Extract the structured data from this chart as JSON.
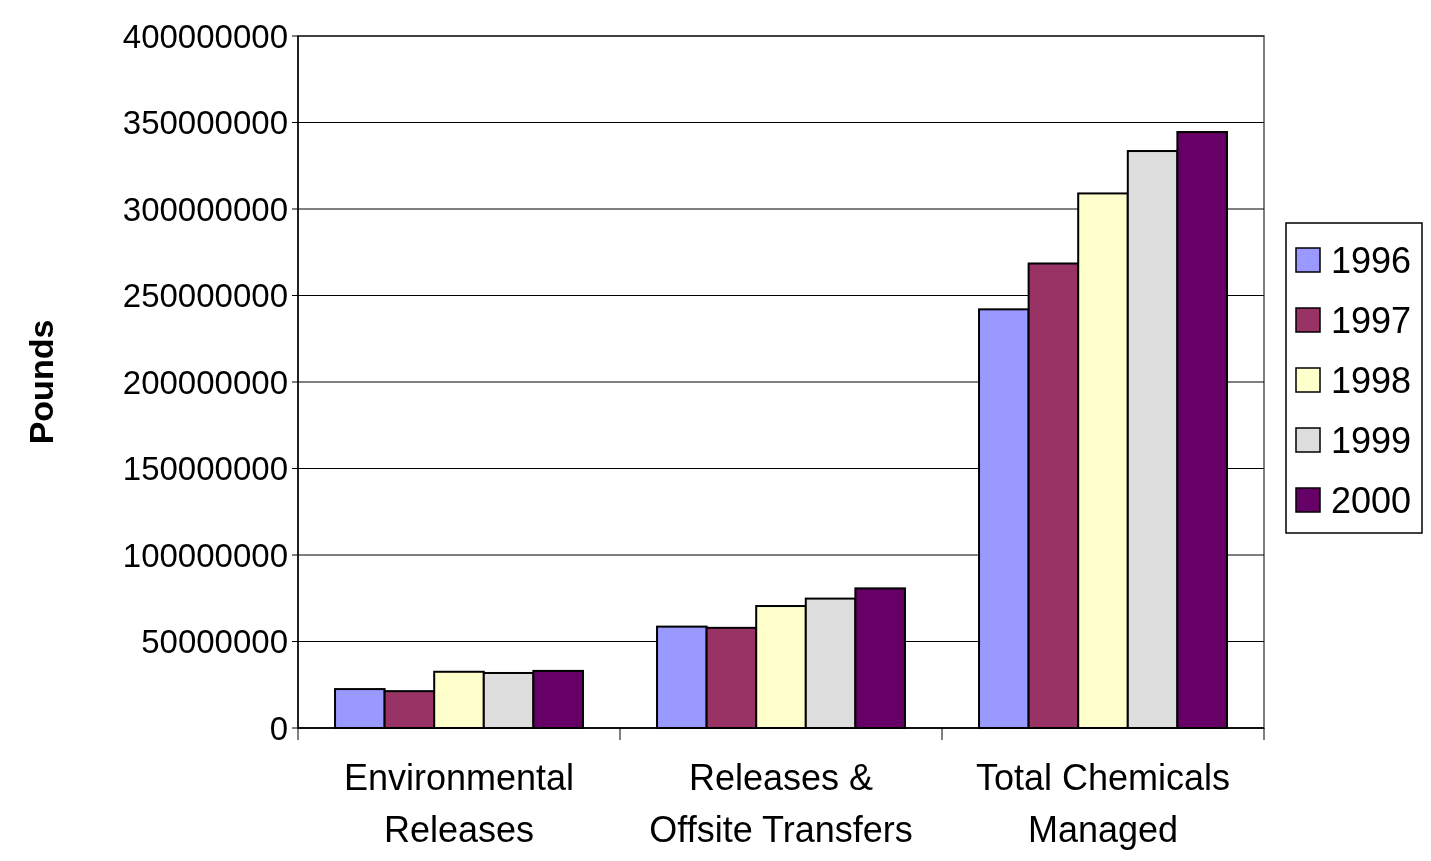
{
  "chart_data": {
    "type": "bar",
    "ylabel": "Pounds",
    "categories": [
      "Environmental Releases",
      "Releases & Offsite Transfers",
      "Total Chemicals Managed"
    ],
    "series": [
      {
        "name": "1996",
        "color": "#9999ff",
        "values": [
          22500000,
          58600000,
          242000000
        ]
      },
      {
        "name": "1997",
        "color": "#993366",
        "values": [
          21300000,
          57900000,
          268500000
        ]
      },
      {
        "name": "1998",
        "color": "#ffffcc",
        "values": [
          32500000,
          70500000,
          309000000
        ]
      },
      {
        "name": "1999",
        "color": "#dddddd",
        "values": [
          31800000,
          74800000,
          333500000
        ]
      },
      {
        "name": "2000",
        "color": "#660066",
        "values": [
          33000000,
          80700000,
          344500000
        ]
      }
    ],
    "ylim": [
      0,
      400000000
    ],
    "yticks": [
      0,
      50000000,
      100000000,
      150000000,
      200000000,
      250000000,
      300000000,
      350000000,
      400000000
    ],
    "grid": "y",
    "legend": "right"
  }
}
